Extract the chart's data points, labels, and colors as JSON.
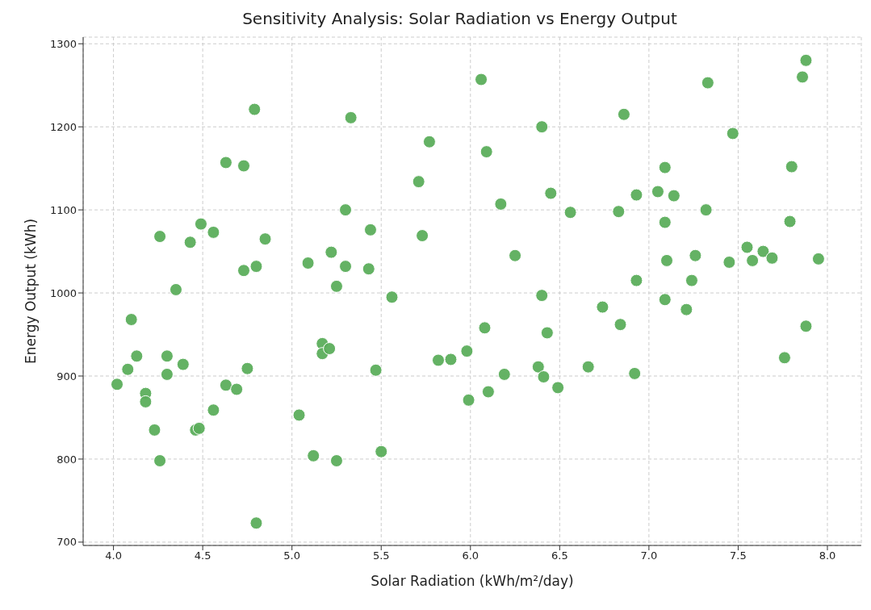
{
  "chart_data": {
    "type": "scatter",
    "title": "Sensitivity Analysis: Solar Radiation vs Energy Output",
    "xlabel": "Solar Radiation (kWh/m²/day)",
    "ylabel": "Energy Output (kWh)",
    "x": [
      4.02,
      4.08,
      4.1,
      4.13,
      4.18,
      4.18,
      4.23,
      4.26,
      4.26,
      4.3,
      4.3,
      4.35,
      4.39,
      4.43,
      4.46,
      4.48,
      4.49,
      4.56,
      4.56,
      4.63,
      4.63,
      4.69,
      4.73,
      4.73,
      4.75,
      4.79,
      4.8,
      4.8,
      4.85,
      5.04,
      5.09,
      5.12,
      5.17,
      5.17,
      5.21,
      5.22,
      5.25,
      5.25,
      5.3,
      5.3,
      5.33,
      5.43,
      5.44,
      5.47,
      5.5,
      5.56,
      5.71,
      5.73,
      5.77,
      5.82,
      5.89,
      5.98,
      5.99,
      6.06,
      6.08,
      6.09,
      6.1,
      6.17,
      6.19,
      6.25,
      6.38,
      6.4,
      6.4,
      6.41,
      6.43,
      6.45,
      6.49,
      6.56,
      6.66,
      6.74,
      6.83,
      6.84,
      6.86,
      6.92,
      6.93,
      6.93,
      7.05,
      7.09,
      7.09,
      7.09,
      7.1,
      7.14,
      7.21,
      7.24,
      7.26,
      7.32,
      7.33,
      7.45,
      7.47,
      7.55,
      7.58,
      7.64,
      7.69,
      7.76,
      7.79,
      7.8,
      7.86,
      7.88,
      7.88,
      7.95
    ],
    "series": [
      {
        "color": "#5cae5c",
        "values": [
          890,
          908,
          968,
          924,
          879,
          869,
          835,
          1068,
          798,
          924,
          902,
          1004,
          914,
          1061,
          835,
          837,
          1083,
          1073,
          859,
          1157,
          889,
          884,
          1153,
          1027,
          909,
          1221,
          1032,
          723,
          1065,
          853,
          1036,
          804,
          939,
          927,
          933,
          1049,
          1008,
          798,
          1100,
          1032,
          1211,
          1029,
          1076,
          907,
          809,
          995,
          1134,
          1069,
          1182,
          919,
          920,
          930,
          871,
          1257,
          958,
          1170,
          881,
          1107,
          902,
          1045,
          911,
          1200,
          997,
          899,
          952,
          1120,
          886,
          1097,
          911,
          983,
          1098,
          962,
          1215,
          903,
          1118,
          1015,
          1122,
          1151,
          1085,
          992,
          1039,
          1117,
          980,
          1015,
          1045,
          1100,
          1253,
          1037,
          1192,
          1055,
          1039,
          1050,
          1042,
          922,
          1086,
          1152,
          1260,
          1280,
          960,
          1041
        ]
      }
    ],
    "xlim": [
      3.83,
      8.19
    ],
    "ylim": [
      696,
      1308
    ],
    "xticks": [
      {
        "value": 4,
        "label": "4.0"
      },
      {
        "value": 4.5,
        "label": "4.5"
      },
      {
        "value": 5,
        "label": "5.0"
      },
      {
        "value": 5.5,
        "label": "5.5"
      },
      {
        "value": 6,
        "label": "6.0"
      },
      {
        "value": 6.5,
        "label": "6.5"
      },
      {
        "value": 7,
        "label": "7.0"
      },
      {
        "value": 7.5,
        "label": "7.5"
      },
      {
        "value": 8,
        "label": "8.0"
      }
    ],
    "yticks": [
      700,
      800,
      900,
      1000,
      1100,
      1200,
      1300
    ],
    "grid": true,
    "marker": "circle"
  }
}
